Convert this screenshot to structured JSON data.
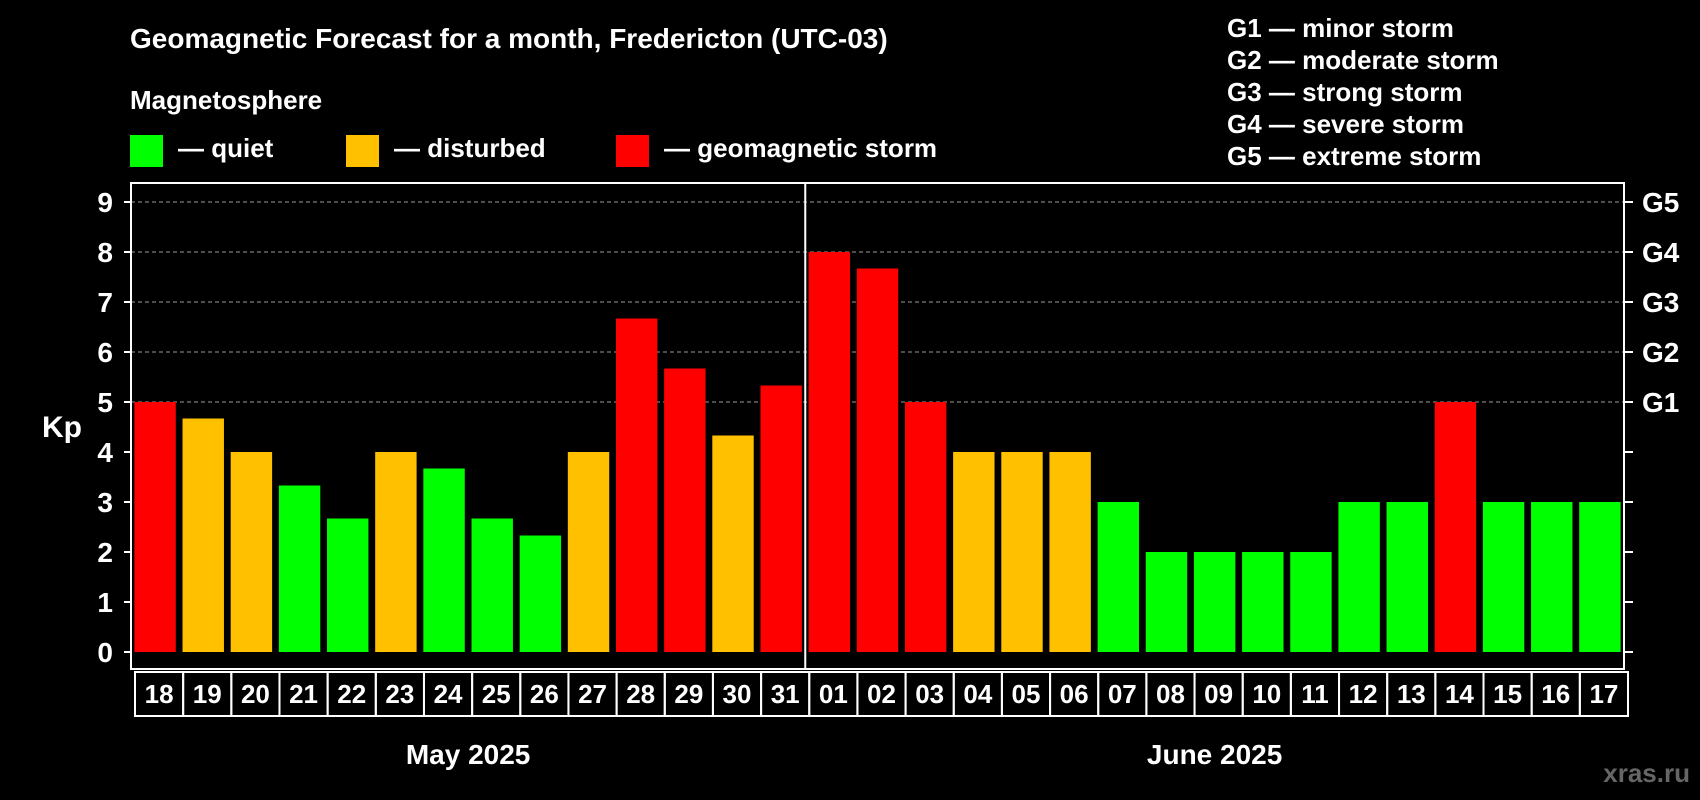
{
  "chart_data": {
    "type": "bar",
    "title": "Geomagnetic Forecast for a month, Fredericton (UTC-03)",
    "ylabel": "Kp",
    "ylim": [
      0,
      9
    ],
    "yticks": [
      "0",
      "1",
      "2",
      "3",
      "4",
      "5",
      "6",
      "7",
      "8",
      "9"
    ],
    "storm_scale": [
      {
        "kp": 5,
        "label": "G1"
      },
      {
        "kp": 6,
        "label": "G2"
      },
      {
        "kp": 7,
        "label": "G3"
      },
      {
        "kp": 8,
        "label": "G4"
      },
      {
        "kp": 9,
        "label": "G5"
      }
    ],
    "categories": [
      "18",
      "19",
      "20",
      "21",
      "22",
      "23",
      "24",
      "25",
      "26",
      "27",
      "28",
      "29",
      "30",
      "31",
      "01",
      "02",
      "03",
      "04",
      "05",
      "06",
      "07",
      "08",
      "09",
      "10",
      "11",
      "12",
      "13",
      "14",
      "15",
      "16",
      "17"
    ],
    "values": [
      5,
      4.67,
      4,
      3.33,
      2.67,
      4,
      3.67,
      2.67,
      2.33,
      4,
      6.67,
      5.67,
      4.33,
      5.33,
      8,
      7.67,
      5,
      4,
      4,
      4,
      3,
      2,
      2,
      2,
      2,
      3,
      3,
      5,
      3,
      3,
      3
    ],
    "status": [
      "storm",
      "disturbed",
      "disturbed",
      "quiet",
      "quiet",
      "disturbed",
      "quiet",
      "quiet",
      "quiet",
      "disturbed",
      "storm",
      "storm",
      "disturbed",
      "storm",
      "storm",
      "storm",
      "storm",
      "disturbed",
      "disturbed",
      "disturbed",
      "quiet",
      "quiet",
      "quiet",
      "quiet",
      "quiet",
      "quiet",
      "quiet",
      "storm",
      "quiet",
      "quiet",
      "quiet"
    ],
    "months": [
      {
        "label": "May 2025",
        "first_index": 0,
        "last_index": 13
      },
      {
        "label": "June 2025",
        "first_index": 14,
        "last_index": 30
      }
    ],
    "grid": true
  },
  "legend": {
    "heading": "Magnetosphere",
    "items": [
      {
        "key": "quiet",
        "label": "— quiet",
        "color": "#00ff00"
      },
      {
        "key": "disturbed",
        "label": "— disturbed",
        "color": "#ffc000"
      },
      {
        "key": "storm",
        "label": "— geomagnetic storm",
        "color": "#ff0000"
      }
    ]
  },
  "storm_legend": [
    "G1 — minor storm",
    "G2 — moderate storm",
    "G3 — strong storm",
    "G4 — severe storm",
    "G5 — extreme storm"
  ],
  "watermark": "xras.ru"
}
